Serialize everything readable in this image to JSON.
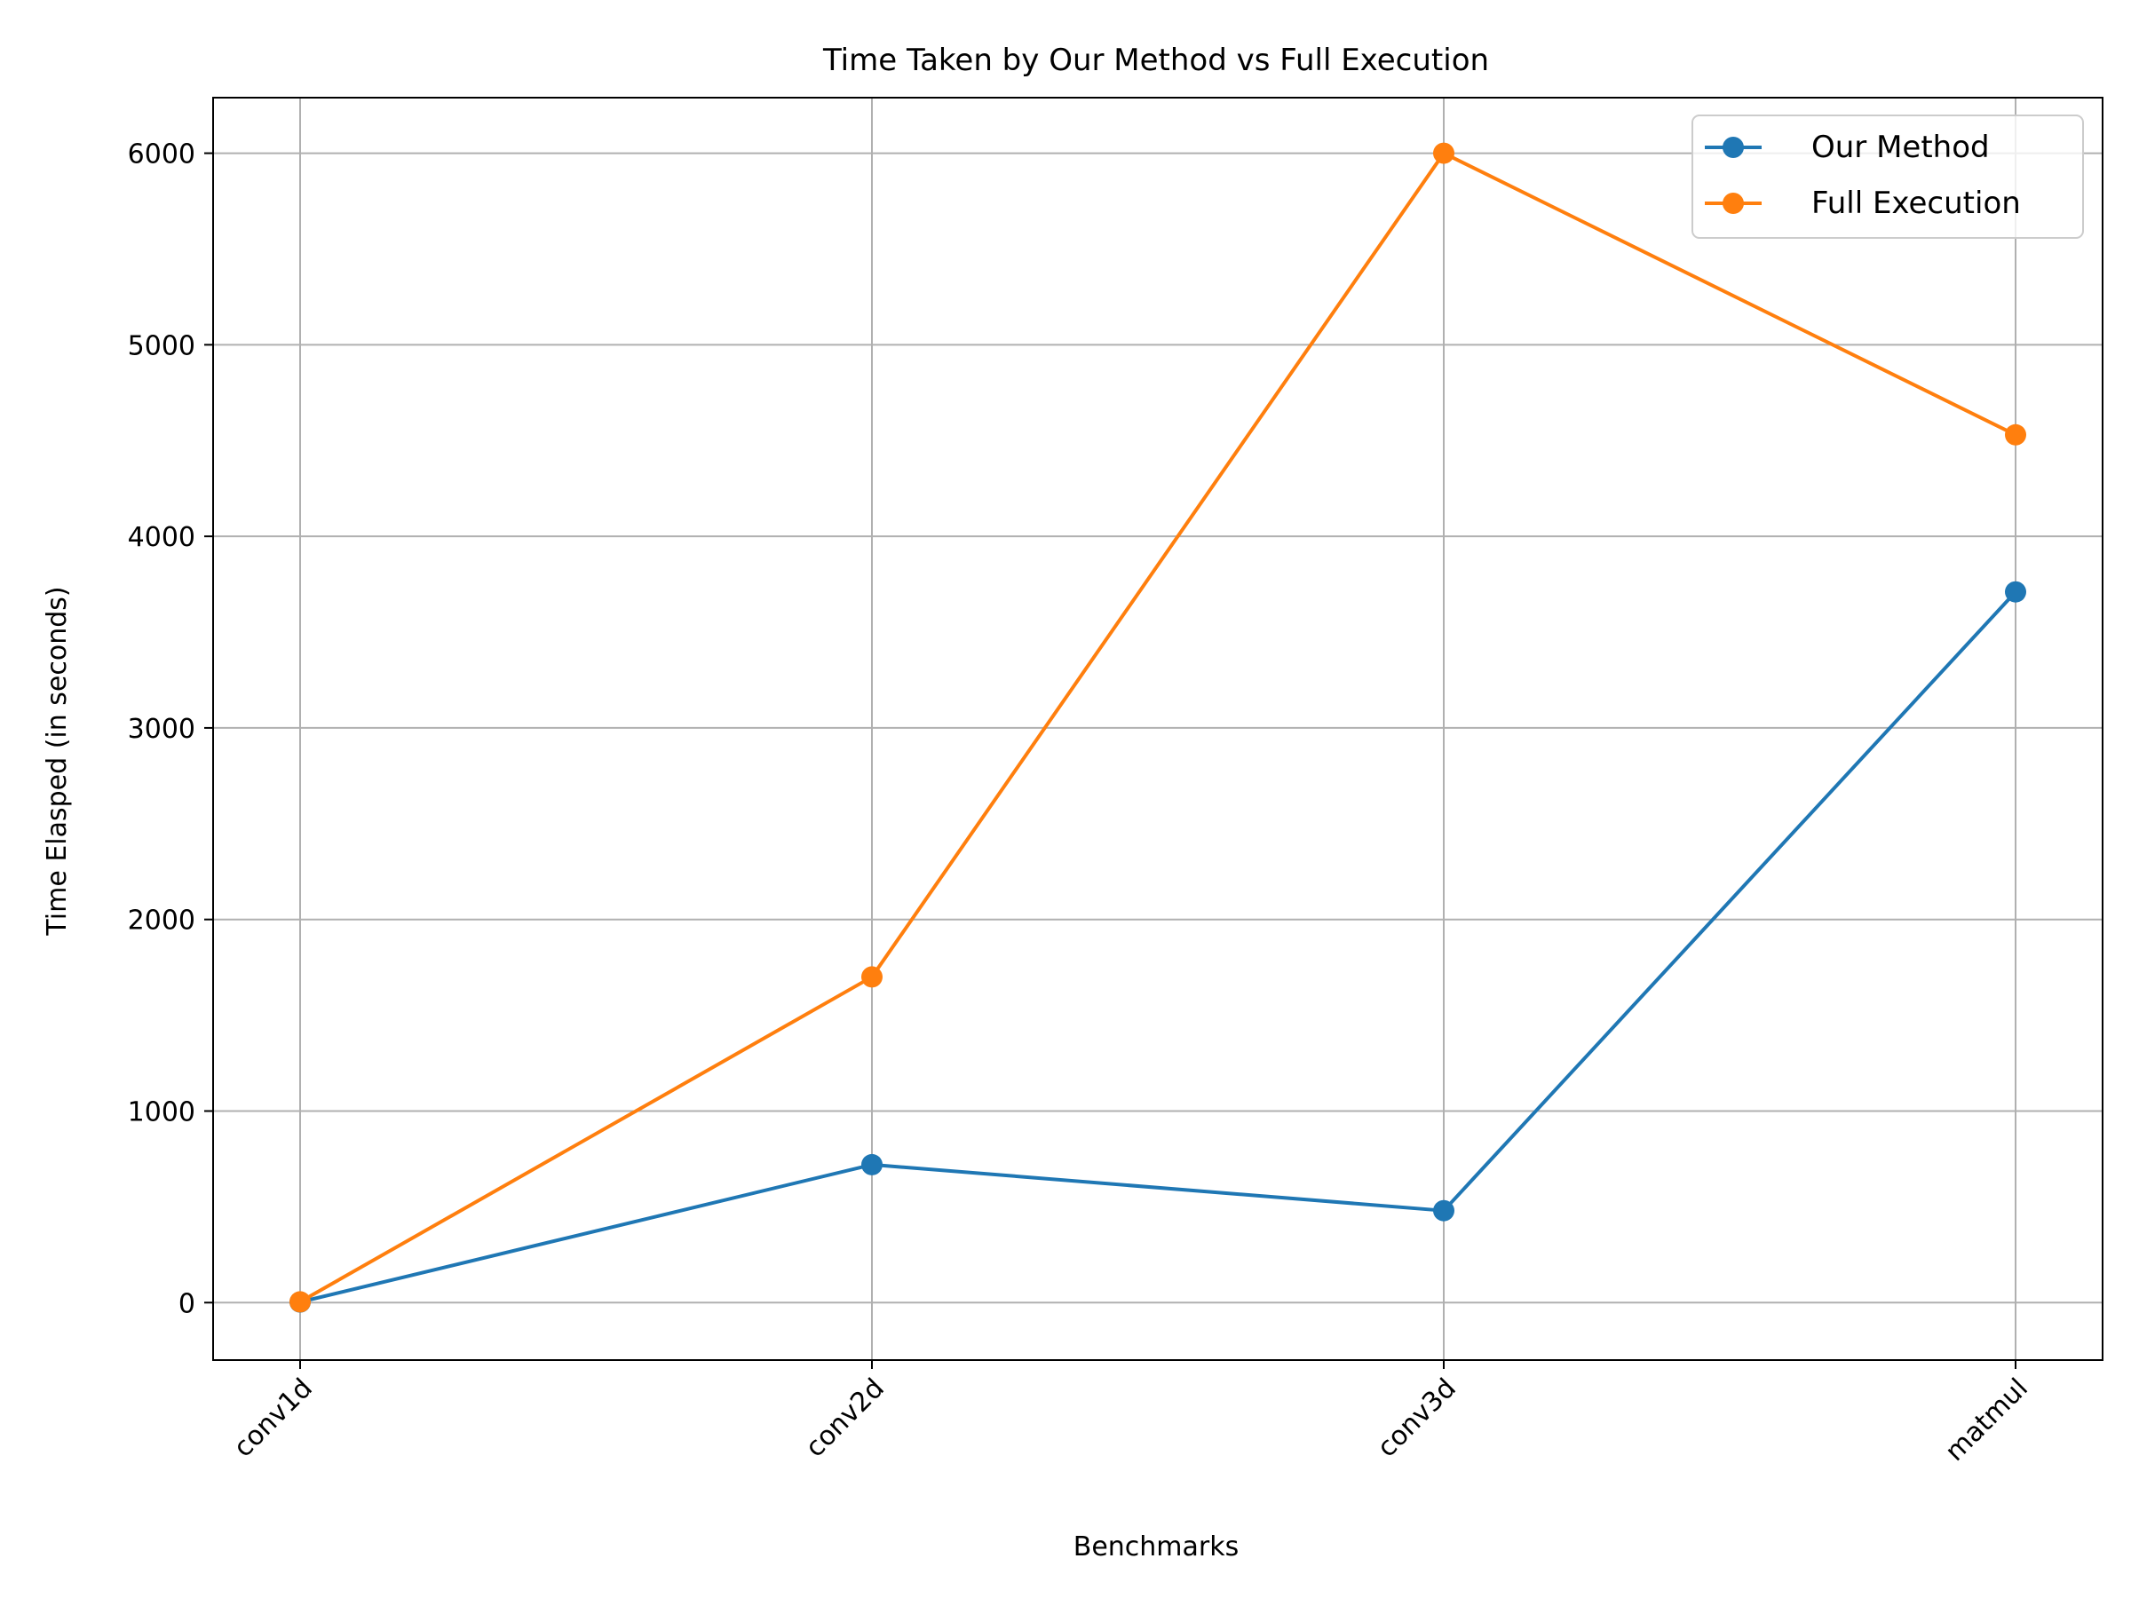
{
  "chart_data": {
    "type": "line",
    "title": "Time Taken by Our Method vs Full Execution",
    "xlabel": "Benchmarks",
    "ylabel": "Time Elasped (in seconds)",
    "categories": [
      "conv1d",
      "conv2d",
      "conv3d",
      "matmul"
    ],
    "yticks": [
      0,
      1000,
      2000,
      3000,
      4000,
      5000,
      6000
    ],
    "ylim": [
      -300,
      6290
    ],
    "grid": true,
    "legend_position": "top-right",
    "series": [
      {
        "name": "Our Method",
        "color": "#1f77b4",
        "values": [
          3,
          720,
          480,
          3710
        ]
      },
      {
        "name": "Full Execution",
        "color": "#ff7f0e",
        "values": [
          4,
          1700,
          6000,
          4530
        ]
      }
    ]
  }
}
